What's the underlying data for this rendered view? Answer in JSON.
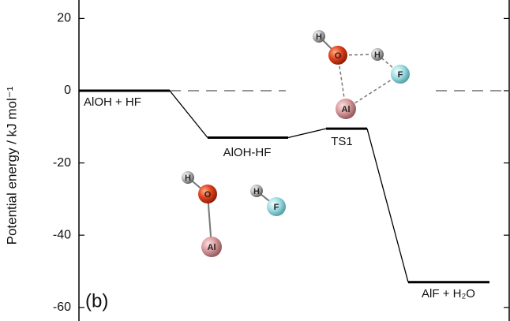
{
  "chart_data": {
    "type": "energy-profile",
    "ylabel": "Potential energy / kJ mol⁻¹",
    "panel_label": "(b)",
    "categories": [
      "AlOH + HF",
      "AlOH-HF",
      "TS1",
      "AlF + H₂O"
    ],
    "values": [
      0,
      -13,
      -10.5,
      -53
    ],
    "color": "#000000",
    "reference_line": 0,
    "ylim": [
      -63.5,
      22
    ],
    "yticks": [
      -60,
      -40,
      -20,
      0,
      20
    ],
    "ts1_atoms": [
      "H",
      "O",
      "H",
      "F",
      "Al"
    ],
    "reactant_atoms": [
      "H",
      "O",
      "Al",
      "H",
      "F"
    ]
  }
}
